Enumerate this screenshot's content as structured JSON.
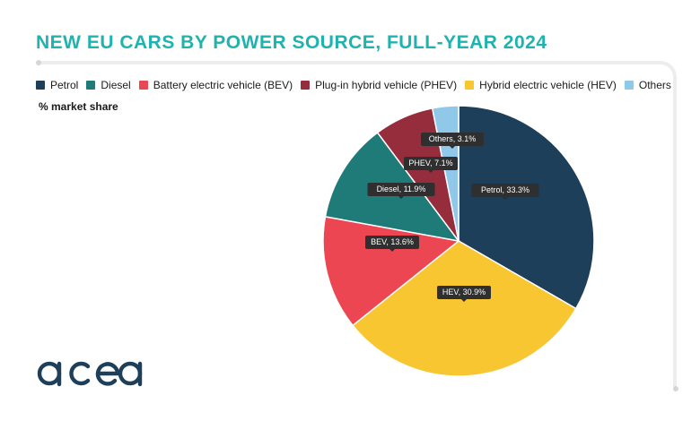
{
  "title": "NEW EU CARS BY POWER SOURCE, FULL-YEAR 2024",
  "subtitle": "% market share",
  "logo_text": "acea",
  "chart_data": {
    "type": "pie",
    "title": "NEW EU CARS BY POWER SOURCE, FULL-YEAR 2024",
    "unit": "% market share",
    "legend_position": "top-left",
    "legend": [
      {
        "label": "Petrol",
        "color": "#1e3f5a"
      },
      {
        "label": "Diesel",
        "color": "#1e7b78"
      },
      {
        "label": "Battery electric vehicle (BEV)",
        "color": "#ec4652"
      },
      {
        "label": "Plug-in hybrid vehicle (PHEV)",
        "color": "#962d3d"
      },
      {
        "label": "Hybrid electric vehicle (HEV)",
        "color": "#f7c631"
      },
      {
        "label": "Others",
        "color": "#8fc8e8"
      }
    ],
    "slices": [
      {
        "name": "Petrol",
        "value": 33.3,
        "label": "Petrol, 33.3%",
        "color": "#1e3f5a"
      },
      {
        "name": "HEV",
        "value": 30.9,
        "label": "HEV, 30.9%",
        "color": "#f7c631"
      },
      {
        "name": "BEV",
        "value": 13.6,
        "label": "BEV, 13.6%",
        "color": "#ec4652"
      },
      {
        "name": "Diesel",
        "value": 11.9,
        "label": "Diesel, 11.9%",
        "color": "#1e7b78"
      },
      {
        "name": "PHEV",
        "value": 7.1,
        "label": "PHEV, 7.1%",
        "color": "#962d3d"
      },
      {
        "name": "Others",
        "value": 3.1,
        "label": "Others, 3.1%",
        "color": "#8fc8e8"
      }
    ]
  }
}
